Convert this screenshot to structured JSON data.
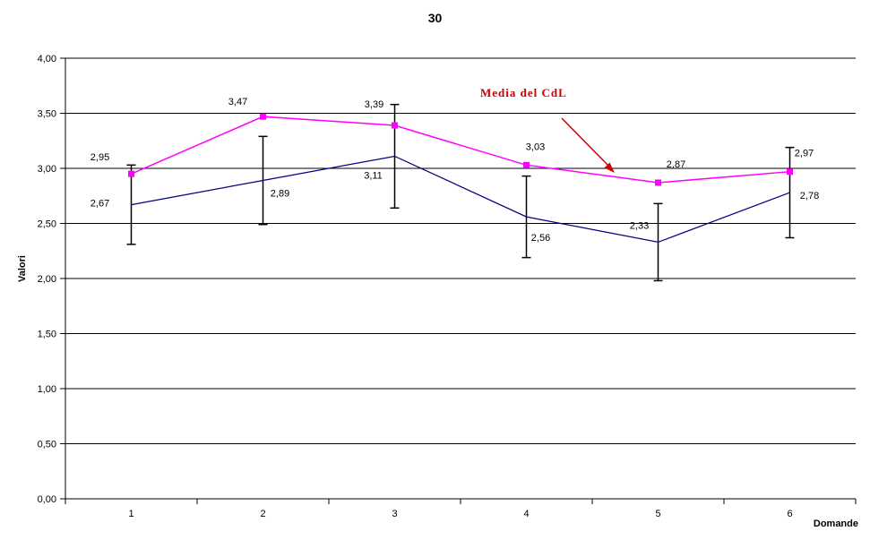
{
  "chart_data": {
    "type": "line",
    "title": "30",
    "xlabel": "Domande",
    "ylabel": "Valori",
    "ylim": [
      0,
      4
    ],
    "ytick_step": 0.5,
    "ytick_labels": [
      "0,00",
      "0,50",
      "1,00",
      "1,50",
      "2,00",
      "2,50",
      "3,00",
      "3,50",
      "4,00"
    ],
    "categories": [
      "1",
      "2",
      "3",
      "4",
      "5",
      "6"
    ],
    "grid": true,
    "legend": "none",
    "background": "#ffffff",
    "gridline_color": "#000000",
    "axis_color": "#000000",
    "series": [
      {
        "id": "series-magenta",
        "color": "#FF00FF",
        "marker": "square",
        "values": [
          2.95,
          3.47,
          3.39,
          3.03,
          2.87,
          2.97
        ],
        "point_labels": [
          "2,95",
          "3,47",
          "3,39",
          "3,03",
          "2,87",
          "2,97"
        ]
      },
      {
        "id": "series-navy",
        "color": "#000080",
        "marker": "none",
        "values": [
          2.67,
          2.89,
          3.11,
          2.56,
          2.33,
          2.78
        ],
        "point_labels": [
          "2,67",
          "2,89",
          "3,11",
          "2,56",
          "2,33",
          "2,78"
        ]
      }
    ],
    "error_bars": {
      "attached_to_series": "series-navy",
      "color": "#000000",
      "half_widths": [
        0.36,
        0.4,
        0.47,
        0.37,
        0.35,
        0.41
      ]
    },
    "annotation": {
      "text": "Media del CdL",
      "color": "#CC0000",
      "points_to": "series-magenta between categories 4 and 5"
    }
  }
}
